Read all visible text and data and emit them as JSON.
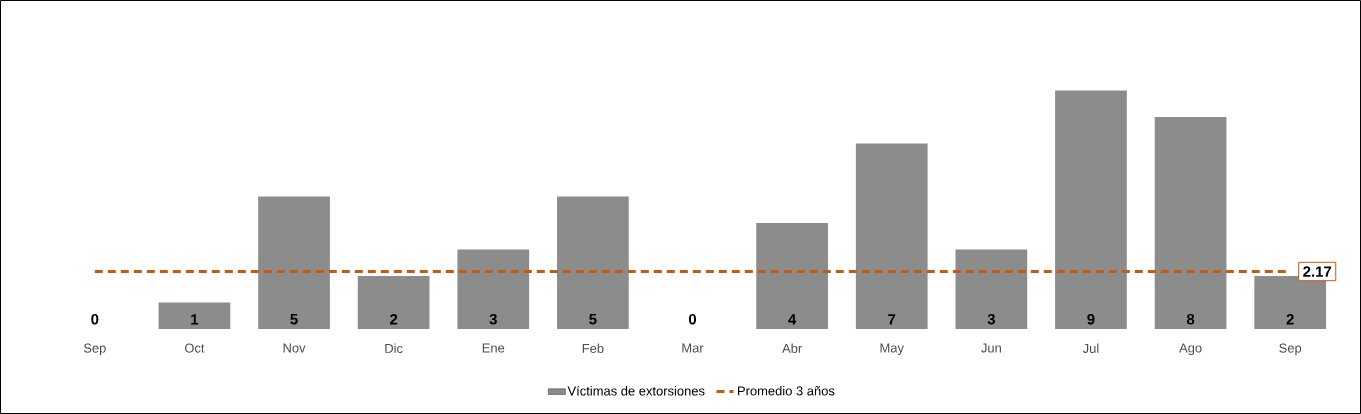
{
  "chart_data": {
    "type": "bar",
    "categories": [
      "Sep",
      "Oct",
      "Nov",
      "Dic",
      "Ene",
      "Feb",
      "Mar",
      "Abr",
      "May",
      "Jun",
      "Jul",
      "Ago",
      "Sep"
    ],
    "legend": "bottom",
    "series": [
      {
        "name": "Víctimas de extorsiones",
        "color": "#8c8c8c",
        "values": [
          0,
          1,
          5,
          2,
          3,
          5,
          0,
          4,
          7,
          3,
          9,
          8,
          2
        ],
        "value_labels": [
          "0",
          "1",
          "5",
          "2",
          "3",
          "5",
          "0",
          "4",
          "7",
          "3",
          "9",
          "8",
          "2"
        ]
      },
      {
        "name": "Promedio 3 años",
        "type": "line",
        "color": "#c55a11",
        "line_style": "dashed",
        "marker": "none",
        "values": [
          2.17,
          2.17,
          2.17,
          2.17,
          2.17,
          2.17,
          2.17,
          2.17,
          2.17,
          2.17,
          2.17,
          2.17,
          2.17
        ],
        "value_labels": [
          null,
          null,
          null,
          null,
          null,
          null,
          null,
          null,
          null,
          null,
          null,
          null,
          "2.17"
        ]
      }
    ]
  }
}
